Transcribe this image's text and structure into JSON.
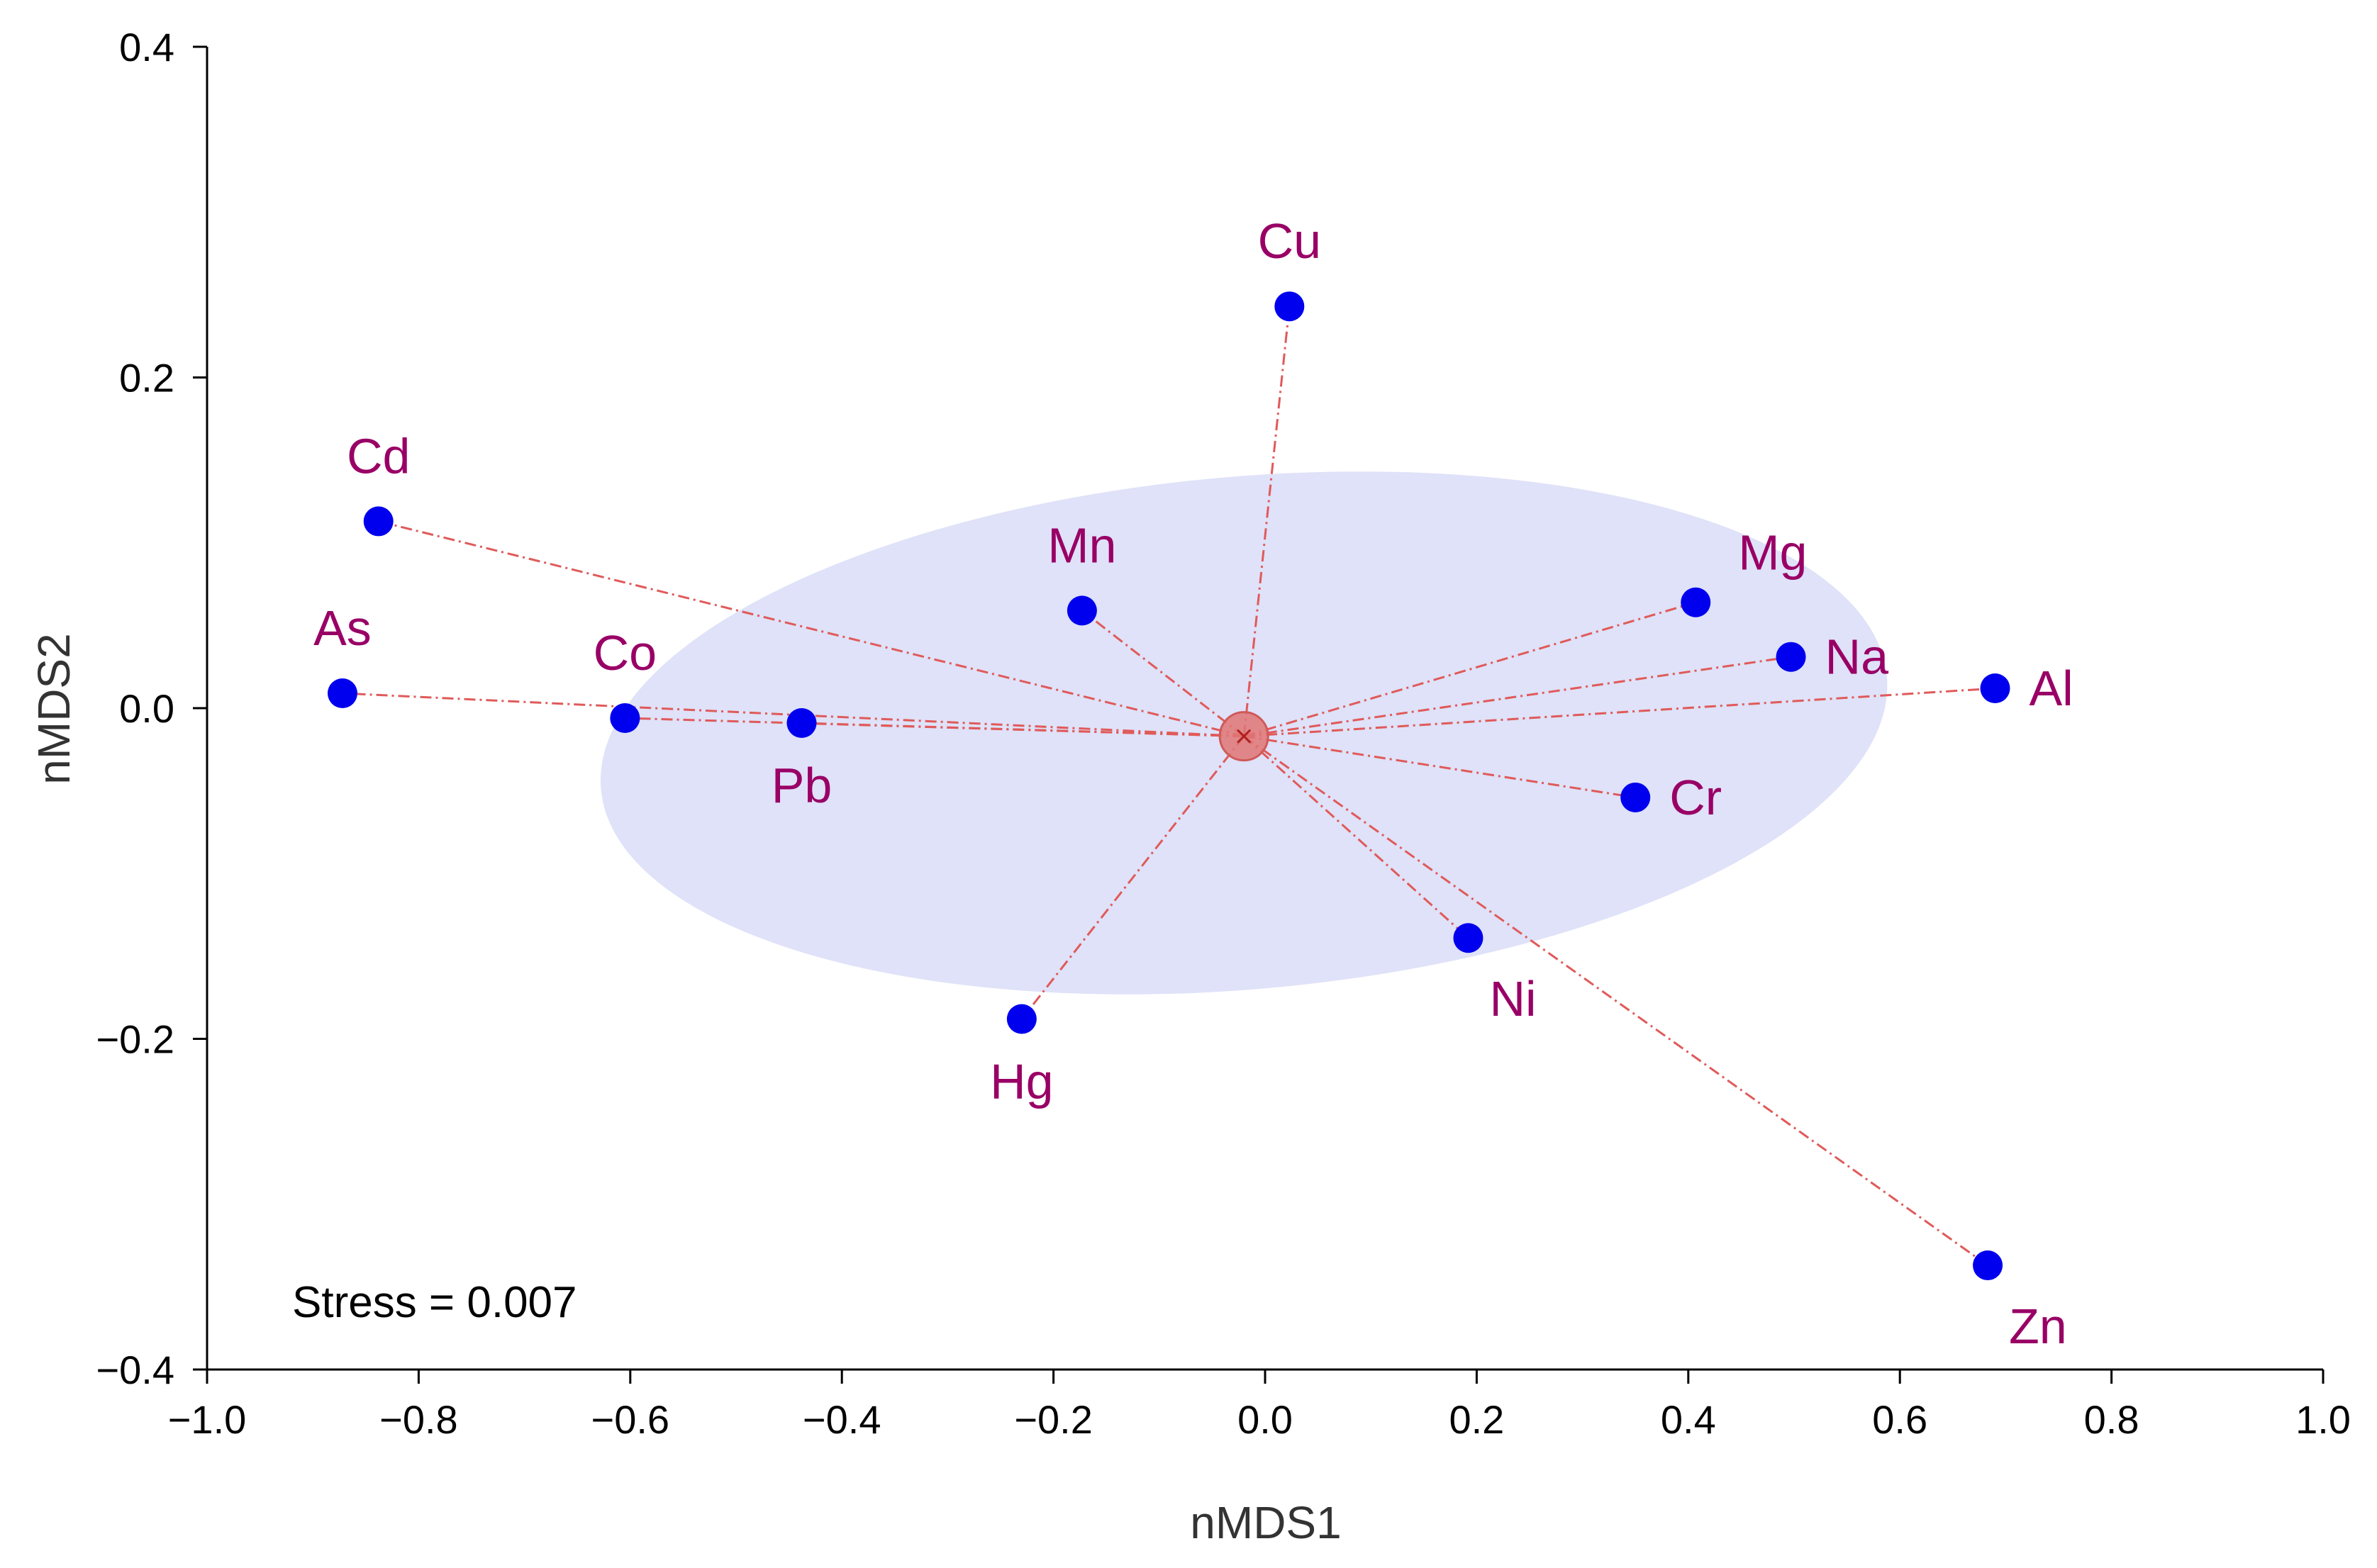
{
  "chart_data": {
    "type": "scatter",
    "title": "",
    "xlabel": "nMDS1",
    "ylabel": "nMDS2",
    "xlim": [
      -1.0,
      1.0
    ],
    "ylim": [
      -0.4,
      0.4
    ],
    "xticks": [
      -1.0,
      -0.8,
      -0.6,
      -0.4,
      -0.2,
      0.0,
      0.2,
      0.4,
      0.6,
      0.8,
      1.0
    ],
    "yticks": [
      -0.4,
      -0.2,
      0.0,
      0.2,
      0.4
    ],
    "xtick_labels": [
      "−1.0",
      "−0.8",
      "−0.6",
      "−0.4",
      "−0.2",
      "0.0",
      "0.2",
      "0.4",
      "0.6",
      "0.8",
      "1.0"
    ],
    "ytick_labels": [
      "−0.4",
      "−0.2",
      "0.0",
      "0.2",
      "0.4"
    ],
    "centroid": {
      "x": -0.02,
      "y": -0.017
    },
    "ellipse": {
      "cx": -0.02,
      "cy": -0.015,
      "rx": 0.61,
      "ry": 0.155,
      "rotation_deg": -5
    },
    "points": [
      {
        "name": "Cu",
        "x": 0.023,
        "y": 0.243,
        "label_pos": "top"
      },
      {
        "name": "Cd",
        "x": -0.838,
        "y": 0.113,
        "label_pos": "top"
      },
      {
        "name": "Mn",
        "x": -0.173,
        "y": 0.059,
        "label_pos": "top"
      },
      {
        "name": "Mg",
        "x": 0.407,
        "y": 0.064,
        "label_pos": "top-right"
      },
      {
        "name": "As",
        "x": -0.872,
        "y": 0.009,
        "label_pos": "top"
      },
      {
        "name": "Co",
        "x": -0.605,
        "y": -0.006,
        "label_pos": "top"
      },
      {
        "name": "Pb",
        "x": -0.438,
        "y": -0.009,
        "label_pos": "bottom"
      },
      {
        "name": "Na",
        "x": 0.497,
        "y": 0.031,
        "label_pos": "right"
      },
      {
        "name": "Al",
        "x": 0.69,
        "y": 0.012,
        "label_pos": "right"
      },
      {
        "name": "Cr",
        "x": 0.35,
        "y": -0.054,
        "label_pos": "right"
      },
      {
        "name": "Ni",
        "x": 0.192,
        "y": -0.139,
        "label_pos": "bottom-right"
      },
      {
        "name": "Hg",
        "x": -0.23,
        "y": -0.188,
        "label_pos": "bottom"
      },
      {
        "name": "Zn",
        "x": 0.683,
        "y": -0.337,
        "label_pos": "bottom-right"
      }
    ],
    "annotation": "Stress = 0.007",
    "colors": {
      "point": "#0000ee",
      "label": "#990066",
      "line": "#e05a5a",
      "ellipse": "#dfe2f8",
      "centroid": "#e07575",
      "axis": "#000000"
    }
  }
}
